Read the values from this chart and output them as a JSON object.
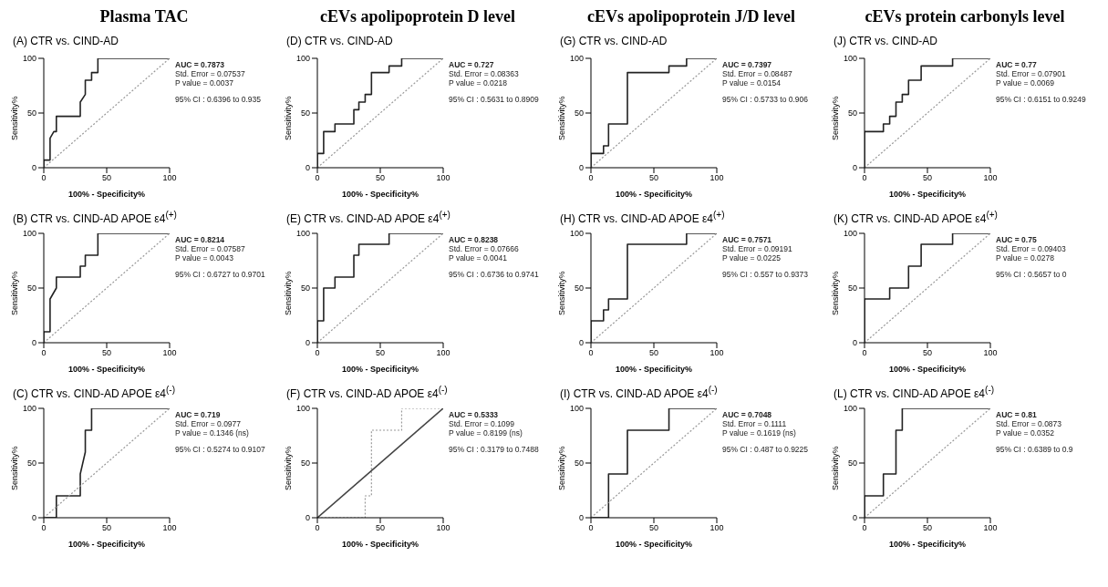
{
  "chart_data": [
    {
      "type": "line",
      "title": "Plasma TAC",
      "subtitle": "(A) CTR vs. CIND-AD",
      "xlabel": "100% - Specificity%",
      "ylabel": "Sensitivity%",
      "xlim": [
        0,
        100
      ],
      "ylim": [
        0,
        100
      ],
      "xticks": [
        0,
        50,
        100
      ],
      "yticks": [
        0,
        50,
        100
      ],
      "grid": false,
      "legend": false,
      "marker": "none",
      "annotations": [
        "AUC = 0.7873",
        "Std. Error = 0.07537",
        "P value = 0.0037",
        "95% CI : 0.6396 to 0.935"
      ],
      "series": [
        {
          "color": "#222222",
          "line_style": "solid",
          "x": [
            0,
            0,
            5,
            5,
            8,
            10,
            10,
            29,
            29,
            33,
            33,
            38,
            38,
            43,
            43,
            100
          ],
          "values": [
            0,
            7,
            7,
            27,
            33,
            33,
            47,
            47,
            60,
            67,
            80,
            80,
            87,
            87,
            100,
            100
          ]
        },
        {
          "color": "#999999",
          "line_style": "dotted",
          "x": [
            0,
            100
          ],
          "values": [
            0,
            100
          ]
        }
      ]
    },
    {
      "type": "line",
      "title": "cEVs apolipoprotein D level",
      "subtitle": "(D) CTR vs. CIND-AD",
      "xlabel": "100% - Specificity%",
      "ylabel": "Sensitivity%",
      "xlim": [
        0,
        100
      ],
      "ylim": [
        0,
        100
      ],
      "xticks": [
        0,
        50,
        100
      ],
      "yticks": [
        0,
        50,
        100
      ],
      "grid": false,
      "legend": false,
      "marker": "none",
      "annotations": [
        "AUC = 0.727",
        "Std. Error = 0.08363",
        "P value = 0.0218",
        "95% CI : 0.5631 to 0.8909"
      ],
      "series": [
        {
          "color": "#222222",
          "line_style": "solid",
          "x": [
            0,
            0,
            5,
            5,
            14,
            14,
            29,
            29,
            33,
            33,
            38,
            38,
            43,
            43,
            57,
            57,
            67,
            67,
            100
          ],
          "values": [
            0,
            13,
            13,
            33,
            33,
            40,
            40,
            53,
            53,
            60,
            60,
            67,
            67,
            87,
            87,
            93,
            93,
            100,
            100
          ]
        },
        {
          "color": "#999999",
          "line_style": "dotted",
          "x": [
            0,
            100
          ],
          "values": [
            0,
            100
          ]
        }
      ]
    },
    {
      "type": "line",
      "title": "cEVs apolipoprotein J/D level",
      "subtitle": "(G) CTR vs. CIND-AD",
      "xlabel": "100% - Specificity%",
      "ylabel": "Sensitivity%",
      "xlim": [
        0,
        100
      ],
      "ylim": [
        0,
        100
      ],
      "xticks": [
        0,
        50,
        100
      ],
      "yticks": [
        0,
        50,
        100
      ],
      "grid": false,
      "legend": false,
      "marker": "none",
      "annotations": [
        "AUC = 0.7397",
        "Std. Error = 0.08487",
        "P value = 0.0154",
        "95% CI : 0.5733 to 0.906"
      ],
      "series": [
        {
          "color": "#222222",
          "line_style": "solid",
          "x": [
            0,
            0,
            10,
            10,
            14,
            14,
            29,
            29,
            62,
            62,
            76,
            76,
            100
          ],
          "values": [
            0,
            13,
            13,
            20,
            20,
            40,
            40,
            87,
            87,
            93,
            93,
            100,
            100
          ]
        },
        {
          "color": "#999999",
          "line_style": "dotted",
          "x": [
            0,
            100
          ],
          "values": [
            0,
            100
          ]
        }
      ]
    },
    {
      "type": "line",
      "title": "cEVs protein carbonyls level",
      "subtitle": "(J) CTR vs. CIND-AD",
      "xlabel": "100% - Specificity%",
      "ylabel": "Sensitivity%",
      "xlim": [
        0,
        100
      ],
      "ylim": [
        0,
        100
      ],
      "xticks": [
        0,
        50,
        100
      ],
      "yticks": [
        0,
        50,
        100
      ],
      "grid": false,
      "legend": false,
      "marker": "none",
      "annotations": [
        "AUC = 0.77",
        "Std. Error = 0.07901",
        "P value = 0.0069",
        "95% CI : 0.6151 to 0.9249"
      ],
      "series": [
        {
          "color": "#222222",
          "line_style": "solid",
          "x": [
            0,
            0,
            15,
            15,
            20,
            20,
            25,
            25,
            30,
            30,
            35,
            35,
            45,
            45,
            70,
            70,
            100
          ],
          "values": [
            0,
            33,
            33,
            40,
            40,
            47,
            47,
            60,
            60,
            67,
            67,
            80,
            80,
            93,
            93,
            100,
            100
          ]
        },
        {
          "color": "#999999",
          "line_style": "dotted",
          "x": [
            0,
            100
          ],
          "values": [
            0,
            100
          ]
        }
      ]
    },
    {
      "type": "line",
      "subtitle": "(B) CTR vs. CIND-AD APOE ε4$^{(+)}$",
      "xlabel": "100% - Specificity%",
      "ylabel": "Sensitivity%",
      "xlim": [
        0,
        100
      ],
      "ylim": [
        0,
        100
      ],
      "xticks": [
        0,
        50,
        100
      ],
      "yticks": [
        0,
        50,
        100
      ],
      "grid": false,
      "legend": false,
      "marker": "none",
      "annotations": [
        "AUC = 0.8214",
        "Std. Error = 0.07587",
        "P value = 0.0043",
        "95% CI : 0.6727 to 0.9701"
      ],
      "series": [
        {
          "color": "#222222",
          "line_style": "solid",
          "x": [
            0,
            0,
            5,
            5,
            10,
            10,
            29,
            29,
            33,
            33,
            43,
            43,
            100
          ],
          "values": [
            0,
            10,
            10,
            40,
            50,
            60,
            60,
            70,
            70,
            80,
            80,
            100,
            100
          ]
        },
        {
          "color": "#999999",
          "line_style": "dotted",
          "x": [
            0,
            100
          ],
          "values": [
            0,
            100
          ]
        }
      ]
    },
    {
      "type": "line",
      "subtitle": "(E) CTR vs. CIND-AD APOE ε4$^{(+)}$",
      "xlabel": "100% - Specificity%",
      "ylabel": "Sensitivity%",
      "xlim": [
        0,
        100
      ],
      "ylim": [
        0,
        100
      ],
      "xticks": [
        0,
        50,
        100
      ],
      "yticks": [
        0,
        50,
        100
      ],
      "grid": false,
      "legend": false,
      "marker": "none",
      "annotations": [
        "AUC = 0.8238",
        "Std. Error = 0.07666",
        "P value = 0.0041",
        "95% CI : 0.6736 to 0.9741"
      ],
      "series": [
        {
          "color": "#222222",
          "line_style": "solid",
          "x": [
            0,
            0,
            5,
            5,
            14,
            14,
            29,
            29,
            33,
            33,
            57,
            57,
            100
          ],
          "values": [
            0,
            20,
            20,
            50,
            50,
            60,
            60,
            80,
            80,
            90,
            90,
            100,
            100
          ]
        },
        {
          "color": "#999999",
          "line_style": "dotted",
          "x": [
            0,
            100
          ],
          "values": [
            0,
            100
          ]
        }
      ]
    },
    {
      "type": "line",
      "subtitle": "(H) CTR vs. CIND-AD APOE ε4$^{(+)}$",
      "xlabel": "100% - Specificity%",
      "ylabel": "Sensitivity%",
      "xlim": [
        0,
        100
      ],
      "ylim": [
        0,
        100
      ],
      "xticks": [
        0,
        50,
        100
      ],
      "yticks": [
        0,
        50,
        100
      ],
      "grid": false,
      "legend": false,
      "marker": "none",
      "annotations": [
        "AUC = 0.7571",
        "Std. Error = 0.09191",
        "P value = 0.0225",
        "95% CI : 0.557 to 0.9373"
      ],
      "series": [
        {
          "color": "#222222",
          "line_style": "solid",
          "x": [
            0,
            0,
            10,
            10,
            14,
            14,
            29,
            29,
            76,
            76,
            100
          ],
          "values": [
            0,
            20,
            20,
            30,
            30,
            40,
            40,
            90,
            90,
            100,
            100
          ]
        },
        {
          "color": "#999999",
          "line_style": "dotted",
          "x": [
            0,
            100
          ],
          "values": [
            0,
            100
          ]
        }
      ]
    },
    {
      "type": "line",
      "subtitle": "(K) CTR vs. CIND-AD APOE ε4$^{(+)}$",
      "xlabel": "100% - Specificity%",
      "ylabel": "Sensitivity%",
      "xlim": [
        0,
        100
      ],
      "ylim": [
        0,
        100
      ],
      "xticks": [
        0,
        50,
        100
      ],
      "yticks": [
        0,
        50,
        100
      ],
      "grid": false,
      "legend": false,
      "marker": "none",
      "annotations": [
        "AUC = 0.75",
        "Std. Error = 0.09403",
        "P value = 0.0278",
        "95% CI : 0.5657 to 0"
      ],
      "series": [
        {
          "color": "#222222",
          "line_style": "solid",
          "x": [
            0,
            0,
            20,
            20,
            35,
            35,
            45,
            45,
            70,
            70,
            100
          ],
          "values": [
            0,
            40,
            40,
            50,
            50,
            70,
            70,
            90,
            90,
            100,
            100
          ]
        },
        {
          "color": "#999999",
          "line_style": "dotted",
          "x": [
            0,
            100
          ],
          "values": [
            0,
            100
          ]
        }
      ]
    },
    {
      "type": "line",
      "subtitle": "(C) CTR vs. CIND-AD APOE ε4$^{(-)}$",
      "xlabel": "100% - Specificity%",
      "ylabel": "Sensitivity%",
      "xlim": [
        0,
        100
      ],
      "ylim": [
        0,
        100
      ],
      "xticks": [
        0,
        50,
        100
      ],
      "yticks": [
        0,
        50,
        100
      ],
      "grid": false,
      "legend": false,
      "marker": "none",
      "annotations": [
        "AUC = 0.719",
        "Std. Error = 0.0977",
        "P value = 0.1346 (ns)",
        "95% CI : 0.5274 to 0.9107"
      ],
      "series": [
        {
          "color": "#222222",
          "line_style": "solid",
          "x": [
            0,
            10,
            10,
            29,
            29,
            33,
            33,
            38,
            38,
            100
          ],
          "values": [
            0,
            0,
            20,
            20,
            40,
            60,
            80,
            80,
            100,
            100
          ]
        },
        {
          "color": "#999999",
          "line_style": "dotted",
          "x": [
            0,
            100
          ],
          "values": [
            0,
            100
          ]
        }
      ]
    },
    {
      "type": "line",
      "subtitle": "(F) CTR vs. CIND-AD APOE ε4$^{(-)}$",
      "xlabel": "100% - Specificity%",
      "ylabel": "Sensitivity%",
      "xlim": [
        0,
        100
      ],
      "ylim": [
        0,
        100
      ],
      "xticks": [
        0,
        50,
        100
      ],
      "yticks": [
        0,
        50,
        100
      ],
      "grid": false,
      "legend": false,
      "marker": "none",
      "annotations": [
        "AUC = 0.5333",
        "Std. Error = 0.1099",
        "P value = 0.8199 (ns)",
        "95% CI : 0.3179 to 0.7488"
      ],
      "series": [
        {
          "color": "#999999",
          "line_style": "dotted",
          "x": [
            0,
            38,
            38,
            43,
            43,
            67,
            67,
            100
          ],
          "values": [
            0,
            0,
            20,
            20,
            80,
            80,
            100,
            100
          ]
        },
        {
          "color": "#444444",
          "line_style": "solid",
          "x": [
            0,
            100
          ],
          "values": [
            0,
            100
          ]
        }
      ]
    },
    {
      "type": "line",
      "subtitle": "(I) CTR vs. CIND-AD APOE ε4$^{(-)}$",
      "xlabel": "100% - Specificity%",
      "ylabel": "Sensitivity%",
      "xlim": [
        0,
        100
      ],
      "ylim": [
        0,
        100
      ],
      "xticks": [
        0,
        50,
        100
      ],
      "yticks": [
        0,
        50,
        100
      ],
      "grid": false,
      "legend": false,
      "marker": "none",
      "annotations": [
        "AUC = 0.7048",
        "Std. Error = 0.1111",
        "P value = 0.1619 (ns)",
        "95% CI : 0.487 to 0.9225"
      ],
      "series": [
        {
          "color": "#222222",
          "line_style": "solid",
          "x": [
            0,
            14,
            14,
            29,
            29,
            62,
            62,
            100
          ],
          "values": [
            0,
            0,
            40,
            40,
            80,
            80,
            100,
            100
          ]
        },
        {
          "color": "#999999",
          "line_style": "dotted",
          "x": [
            0,
            100
          ],
          "values": [
            0,
            100
          ]
        }
      ]
    },
    {
      "type": "line",
      "subtitle": "(L) CTR vs. CIND-AD APOE ε4$^{(-)}$",
      "xlabel": "100% - Specificity%",
      "ylabel": "Sensitivity%",
      "xlim": [
        0,
        100
      ],
      "ylim": [
        0,
        100
      ],
      "xticks": [
        0,
        50,
        100
      ],
      "yticks": [
        0,
        50,
        100
      ],
      "grid": false,
      "legend": false,
      "marker": "none",
      "annotations": [
        "AUC = 0.81",
        "Std. Error = 0.0873",
        "P value = 0.0352",
        "95% CI : 0.6389 to 0.9"
      ],
      "series": [
        {
          "color": "#222222",
          "line_style": "solid",
          "x": [
            0,
            0,
            15,
            15,
            25,
            25,
            30,
            30,
            100
          ],
          "values": [
            0,
            20,
            20,
            40,
            40,
            80,
            80,
            100,
            100
          ]
        },
        {
          "color": "#999999",
          "line_style": "dotted",
          "x": [
            0,
            100
          ],
          "values": [
            0,
            100
          ]
        }
      ]
    }
  ]
}
